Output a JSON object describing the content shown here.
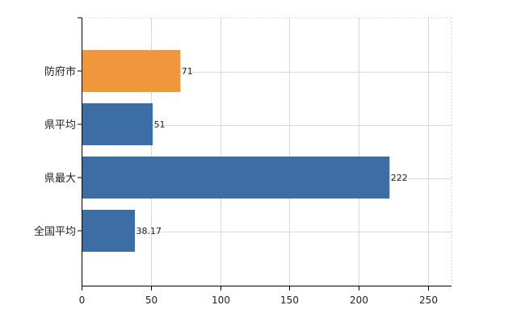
{
  "chart_data": {
    "type": "bar",
    "orientation": "horizontal",
    "categories": [
      "防府市",
      "県平均",
      "県最大",
      "全国平均"
    ],
    "values": [
      71,
      51,
      222,
      38.17
    ],
    "value_labels": [
      "71",
      "51",
      "222",
      "38.17"
    ],
    "bar_colors": [
      "#f0963c",
      "#3c6ea5",
      "#3c6ea5",
      "#3c6ea5"
    ],
    "xlim": [
      0,
      267
    ],
    "x_ticks": [
      0,
      50,
      100,
      150,
      200,
      250
    ],
    "x_tick_labels": [
      "0",
      "50",
      "100",
      "150",
      "200",
      "250"
    ],
    "title": "",
    "xlabel": "",
    "ylabel": "",
    "grid": true,
    "legend": "none"
  }
}
